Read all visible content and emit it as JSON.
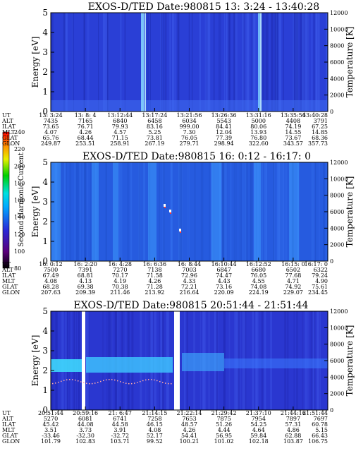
{
  "colorbar": {
    "label": "Second Harmonic Current",
    "ticks": [
      "80",
      "100",
      "120",
      "140",
      "160",
      "180",
      "200",
      "220",
      "240"
    ]
  },
  "colors": {
    "background": "#2a3fd6",
    "bright": "#4da6ff",
    "cyan": "#3fe0ff"
  },
  "chart_data": [
    {
      "type": "heatmap",
      "title": "EXOS-D/TED   Date:980815  13: 3:24 - 13:40:28",
      "ylabel": "Energy [eV]",
      "y2label": "Temperature [K]",
      "ylim": [
        0,
        5
      ],
      "y_ticks": [
        "0",
        "1",
        "2",
        "3",
        "4",
        "5"
      ],
      "y2lim": [
        0,
        12000
      ],
      "y2_ticks": [
        "0",
        "2000",
        "4000",
        "6000",
        "8000",
        "10000",
        "12000"
      ],
      "table": {
        "row_labels": [
          "UT",
          "ALT",
          "ILAT",
          "MLT",
          "GLAT",
          "GLON"
        ],
        "columns": [
          [
            "13: 3:24",
            "7435",
            "73.65",
            "4.07",
            "65.76",
            "249.87"
          ],
          [
            "13: 8: 4",
            "7165",
            "76.71",
            "4.26",
            "68.44",
            "253.51"
          ],
          [
            "13:12:44",
            "6840",
            "79.93",
            "4.57",
            "71.15",
            "258.91"
          ],
          [
            "13:17:24",
            "6458",
            "83.16",
            "5.25",
            "73.81",
            "267.19"
          ],
          [
            "13:21:56",
            "6034",
            "999.00",
            "7.30",
            "76.05",
            "279.71"
          ],
          [
            "13:26:36",
            "5543",
            "84.41",
            "12.04",
            "77.39",
            "298.94"
          ],
          [
            "13:31:16",
            "5000",
            "80.06",
            "13.93",
            "76.80",
            "322.60"
          ],
          [
            "13:35:56",
            "4408",
            "74.19",
            "14.55",
            "73.67",
            "343.57"
          ],
          [
            "13:40:28",
            "3791",
            "67.25",
            "14.85",
            "68.36",
            "357.73"
          ]
        ]
      }
    },
    {
      "type": "heatmap",
      "title": "EXOS-D/TED    Date:980815  16: 0:12 - 16:17: 0",
      "ylabel": "Energy [eV]",
      "y2label": "Temperature [K]",
      "ylim": [
        0,
        5
      ],
      "y_ticks": [
        "0",
        "1",
        "2",
        "3",
        "4",
        "5"
      ],
      "y2lim": [
        0,
        12000
      ],
      "y2_ticks": [
        "0",
        "2000",
        "4000",
        "6000",
        "8000",
        "10000",
        "12000"
      ],
      "table": {
        "row_labels": [
          "UT",
          "ALT",
          "ILAT",
          "MLT",
          "GLAT",
          "GLON"
        ],
        "columns": [
          [
            "16: 0:12",
            "7500",
            "67.49",
            "4.08",
            "68.28",
            "207.63"
          ],
          [
            "16: 2:20",
            "7391",
            "68.81",
            "4.13",
            "69.38",
            "209.39"
          ],
          [
            "16: 4:28",
            "7270",
            "70.17",
            "4.19",
            "70.38",
            "211.46"
          ],
          [
            "16: 6:36",
            "7138",
            "71.58",
            "4.26",
            "71.28",
            "213.92"
          ],
          [
            "16: 8:44",
            "7003",
            "72.96",
            "4.33",
            "72.21",
            "216.64"
          ],
          [
            "16:10:44",
            "6847",
            "74.47",
            "4.43",
            "73.16",
            "220.09"
          ],
          [
            "16:12:52",
            "6680",
            "76.05",
            "4.55",
            "74.08",
            "224.19"
          ],
          [
            "16:15: 0",
            "6502",
            "77.68",
            "4.71",
            "74.92",
            "229.07"
          ],
          [
            "16:17: 0",
            "6322",
            "79.24",
            "4.90",
            "75.61",
            "234.45"
          ]
        ]
      }
    },
    {
      "type": "heatmap",
      "title": "EXOS-D/TED   Date:980815  20:51:44 - 21:51:44",
      "ylabel": "Energy [eV]",
      "y2label": "Temperature [K]",
      "ylim": [
        0,
        5
      ],
      "y_ticks": [
        "0",
        "1",
        "2",
        "3",
        "4",
        "5"
      ],
      "y2lim": [
        0,
        12000
      ],
      "y2_ticks": [
        "0",
        "2000",
        "4000",
        "6000",
        "8000",
        "10000",
        "12000"
      ],
      "table": {
        "row_labels": [
          "UT",
          "ALT",
          "ILAT",
          "MLT",
          "GLAT",
          "GLON"
        ],
        "columns": [
          [
            "20:51:44",
            "5270",
            "45.42",
            "3.51",
            "-33.46",
            "101.79"
          ],
          [
            "20:59:16",
            "6081",
            "44.08",
            "3.73",
            "-32.30",
            "102.83"
          ],
          [
            "21: 6:47",
            "6741",
            "44.58",
            "3.91",
            "-32.72",
            "103.71"
          ],
          [
            "21:14:15",
            "7258",
            "46.15",
            "4.08",
            "52.17",
            "99.52"
          ],
          [
            "21:22:14",
            "7653",
            "48.57",
            "4.26",
            "54.41",
            "100.21"
          ],
          [
            "21:29:42",
            "7875",
            "51.26",
            "4.44",
            "56.95",
            "101.02"
          ],
          [
            "21:37:10",
            "7954",
            "54.25",
            "4.64",
            "59.84",
            "102.18"
          ],
          [
            "21:44:16",
            "7897",
            "57.31",
            "4.86",
            "62.88",
            "103.87"
          ],
          [
            "21:51:44",
            "7697",
            "60.78",
            "5.15",
            "66.43",
            "106.75"
          ]
        ]
      }
    }
  ]
}
